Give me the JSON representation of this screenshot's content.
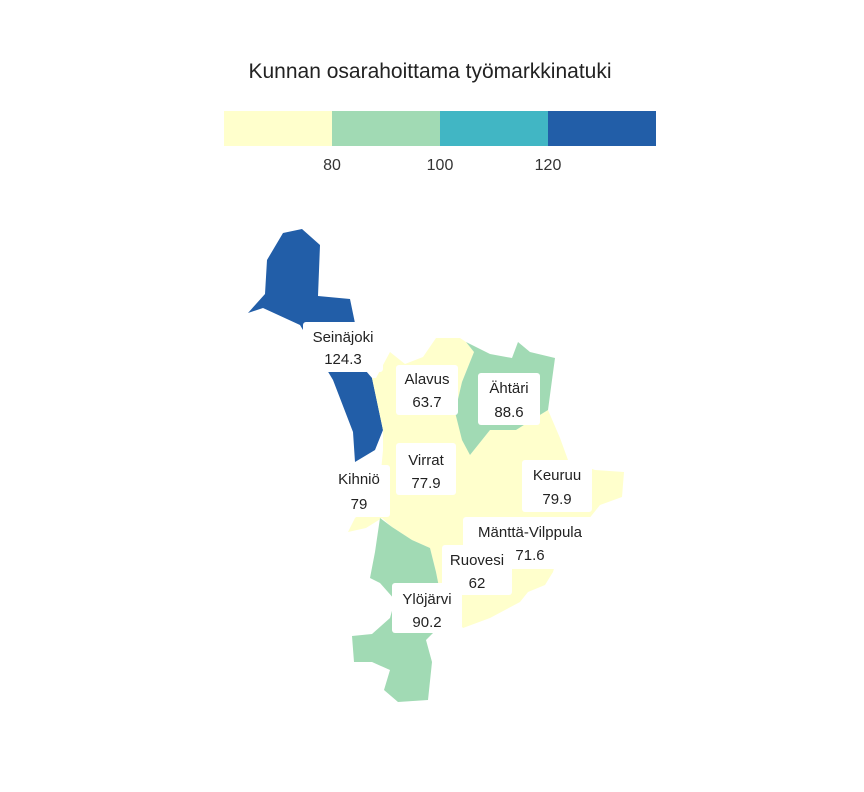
{
  "title": "Kunnan osarahoittama työmarkkinatuki",
  "legend": {
    "bins": [
      {
        "color": "#ffffcc"
      },
      {
        "color": "#a1dab4"
      },
      {
        "color": "#41b6c4"
      },
      {
        "color": "#225ea8"
      }
    ],
    "ticks": [
      "80",
      "100",
      "120"
    ]
  },
  "colors": {
    "bin1": "#ffffcc",
    "bin2": "#a1dab4",
    "bin3": "#41b6c4",
    "bin4": "#225ea8"
  },
  "municipalities": [
    {
      "name": "Seinäjoki",
      "value": "124.3"
    },
    {
      "name": "Alavus",
      "value": "63.7"
    },
    {
      "name": "Ähtäri",
      "value": "88.6"
    },
    {
      "name": "Kihniö",
      "value": "79"
    },
    {
      "name": "Virrat",
      "value": "77.9"
    },
    {
      "name": "Keuruu",
      "value": "79.9"
    },
    {
      "name": "Mänttä-Vilppula",
      "value": "71.6"
    },
    {
      "name": "Ruovesi",
      "value": "62"
    },
    {
      "name": "Ylöjärvi",
      "value": "90.2"
    }
  ]
}
